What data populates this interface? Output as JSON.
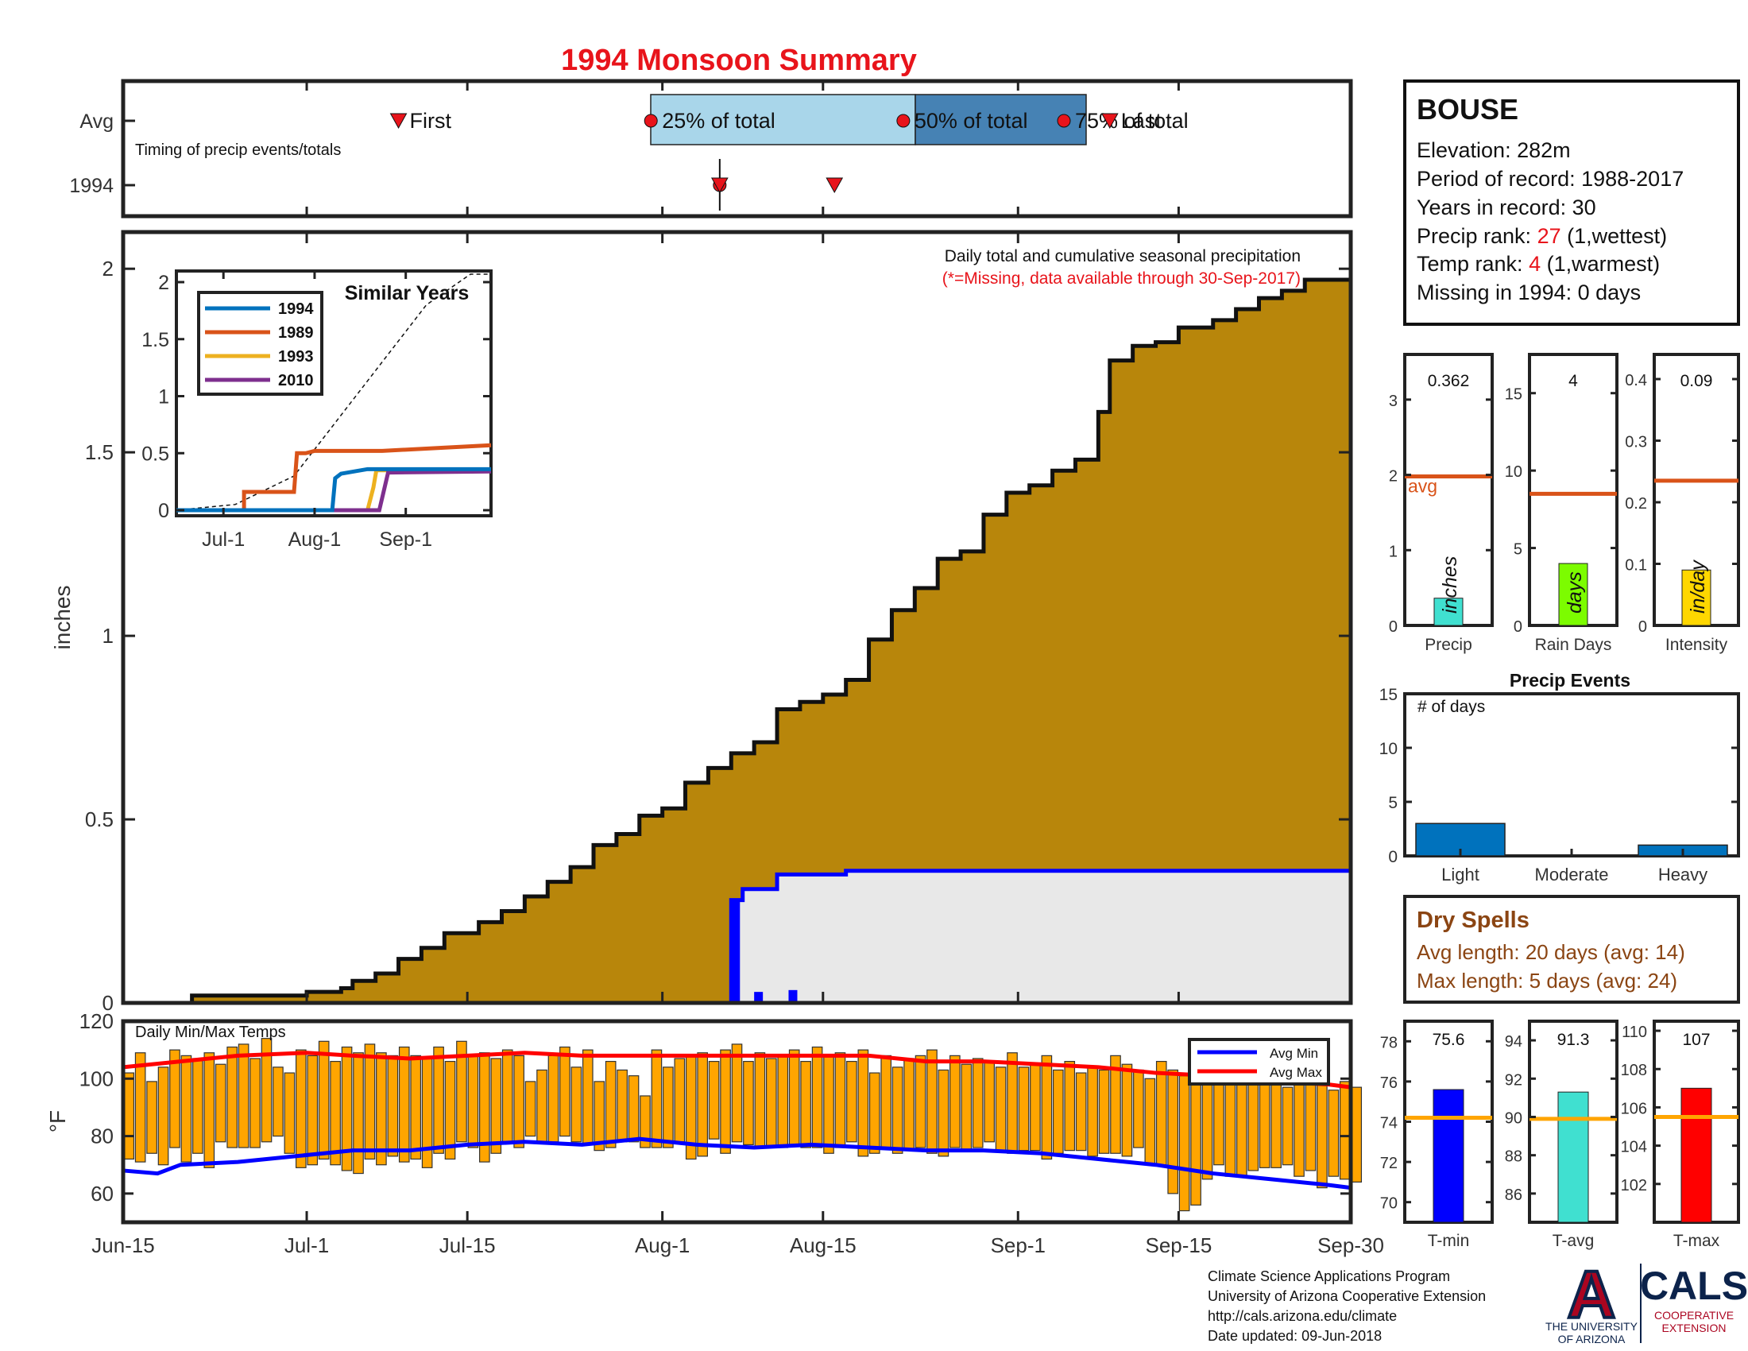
{
  "title": "1994 Monsoon Summary",
  "timing": {
    "row_labels": [
      "Avg",
      "1994"
    ],
    "note": "Timing of precip events/totals",
    "labels": [
      "First",
      "25% of total",
      "50% of total",
      "75% of total",
      "Last"
    ],
    "avg_markers": [
      {
        "date": "Jul-9",
        "day": 24,
        "kind": "triangle",
        "label": "First"
      },
      {
        "date": "Jul-31",
        "day": 46,
        "kind": "circle",
        "label": "25% of total"
      },
      {
        "date": "Aug-22",
        "day": 68,
        "kind": "circle",
        "label": "50% of total"
      },
      {
        "date": "Sep-5",
        "day": 82,
        "kind": "circle",
        "label": "75% of total"
      },
      {
        "date": "Sep-9",
        "day": 86,
        "kind": "triangle",
        "label": "Last"
      }
    ],
    "year_markers": [
      {
        "date": "Aug-6",
        "day": 52,
        "kind": "circle"
      },
      {
        "date": "Aug-6",
        "day": 52,
        "kind": "triangle"
      },
      {
        "date": "Aug-16",
        "day": 62,
        "kind": "triangle"
      }
    ],
    "year_marker_span": [
      "Aug-6",
      "Aug-6"
    ],
    "iqr_light": [
      "Jul-31",
      "Aug-22"
    ],
    "iqr_dark": [
      "Aug-22",
      "Sep-5"
    ]
  },
  "info": {
    "station": "BOUSE",
    "elevation_label": "Elevation: 282m",
    "period_label": "Period of record: 1988-2017",
    "years_label": "Years in record: 30",
    "precip_rank_prefix": "Precip rank: ",
    "precip_rank": "27",
    "precip_rank_suffix": " (1,wettest)",
    "temp_rank_prefix": "Temp rank: ",
    "temp_rank": "4",
    "temp_rank_suffix": " (1,warmest)",
    "missing_label": "Missing in 1994: 0 days"
  },
  "main_chart": {
    "ylabel": "inches",
    "note": "Daily total and cumulative seasonal precipitation",
    "missing_note": "(*=Missing, data available through 30-Sep-2017)",
    "x_ticks": [
      {
        "day": 0,
        "label": "Jun-15"
      },
      {
        "day": 16,
        "label": "Jul-1"
      },
      {
        "day": 30,
        "label": "Jul-15"
      },
      {
        "day": 47,
        "label": "Aug-1"
      },
      {
        "day": 61,
        "label": "Aug-15"
      },
      {
        "day": 78,
        "label": "Sep-1"
      },
      {
        "day": 92,
        "label": "Sep-15"
      },
      {
        "day": 107,
        "label": "Sep-30"
      }
    ],
    "y_ticks": [
      "0",
      "0.5",
      "1",
      "1.5",
      "2"
    ],
    "ylim": [
      0,
      2.1
    ]
  },
  "inset": {
    "title": "Similar Years",
    "x_ticks": [
      "Jul-1",
      "Aug-1",
      "Sep-1"
    ],
    "y_ticks": [
      "0",
      "0.5",
      "1",
      "1.5",
      "2"
    ],
    "legend": [
      {
        "name": "1994",
        "color": "#0072bd"
      },
      {
        "name": "1989",
        "color": "#d95319"
      },
      {
        "name": "1993",
        "color": "#edb120"
      },
      {
        "name": "2010",
        "color": "#7e2f8e"
      }
    ]
  },
  "bars_precip": {
    "value_label": "0.362",
    "value": 0.362,
    "avg": 1.98,
    "ylabel": "inches",
    "avg_label": "avg",
    "xlabel": "Precip",
    "ticks": [
      "0",
      "1",
      "2",
      "3"
    ],
    "color": "#40e0d0"
  },
  "bars_raindays": {
    "value_label": "4",
    "value": 4,
    "avg": 8.5,
    "ylabel": "days",
    "xlabel": "Rain Days",
    "ticks": [
      "0",
      "5",
      "10",
      "15"
    ],
    "color": "#7cfc00"
  },
  "bars_intensity": {
    "value_label": "0.09",
    "value": 0.09,
    "avg": 0.235,
    "ylabel": "in/day",
    "xlabel": "Intensity",
    "ticks": [
      "0",
      "0.1",
      "0.2",
      "0.3",
      "0.4"
    ],
    "color": "#ffd700"
  },
  "precip_events": {
    "title": "Precip Events",
    "ylabel": "# of days",
    "ticks": [
      "0",
      "5",
      "10",
      "15"
    ],
    "categories": [
      "Light",
      "Moderate",
      "Heavy"
    ],
    "values": [
      3,
      0,
      1
    ]
  },
  "dry_spells": {
    "title": "Dry Spells",
    "avg_line": "Avg length: 20 days (avg: 14)",
    "max_line": "Max length: 5 days (avg: 24)"
  },
  "temps": {
    "title": "Daily Min/Max Temps",
    "ylabel": "°F",
    "y_ticks": [
      "60",
      "80",
      "100",
      "120"
    ],
    "legend_min": "Avg Min",
    "legend_max": "Avg Max"
  },
  "temp_bars": [
    {
      "xlabel": "T-min",
      "value_label": "75.6",
      "value": 75.6,
      "avg": 74.2,
      "ticks": [
        "70",
        "72",
        "74",
        "76",
        "78"
      ],
      "color": "#0000ff"
    },
    {
      "xlabel": "T-avg",
      "value_label": "91.3",
      "value": 91.3,
      "avg": 89.9,
      "ticks": [
        "86",
        "88",
        "90",
        "92",
        "94"
      ],
      "color": "#40e0d0"
    },
    {
      "xlabel": "T-max",
      "value_label": "107",
      "value": 107,
      "avg": 105.5,
      "ticks": [
        "102",
        "104",
        "106",
        "108",
        "110"
      ],
      "color": "#ff0000"
    }
  ],
  "footer": {
    "line1": "Climate Science Applications Program",
    "line2": "University of Arizona Cooperative Extension",
    "line3": "http://cals.arizona.edu/climate",
    "line4": " Date updated: 09-Jun-2018"
  },
  "logo": {
    "letter": "A",
    "ua_line1": "THE UNIVERSITY",
    "ua_line2": "OF ARIZONA",
    "cals": "CALS",
    "coop1": "COOPERATIVE",
    "coop2": "EXTENSION"
  },
  "chart_data": [
    {
      "type": "area",
      "title": "",
      "ylabel": "inches",
      "ylim": [
        0,
        2.1
      ],
      "x_range": [
        "Jun-15",
        "Sep-30"
      ],
      "series": [
        {
          "values_at_days": [
            [
              0,
              0
            ],
            [
              5,
              0
            ],
            [
              6,
              0.02
            ],
            [
              10,
              0.02
            ],
            [
              16,
              0.03
            ],
            [
              19,
              0.04
            ],
            [
              20,
              0.06
            ],
            [
              22,
              0.08
            ],
            [
              24,
              0.12
            ],
            [
              26,
              0.15
            ],
            [
              28,
              0.19
            ],
            [
              31,
              0.22
            ],
            [
              33,
              0.25
            ],
            [
              35,
              0.29
            ],
            [
              37,
              0.33
            ],
            [
              39,
              0.37
            ],
            [
              41,
              0.43
            ],
            [
              43,
              0.46
            ],
            [
              45,
              0.51
            ],
            [
              47,
              0.53
            ],
            [
              49,
              0.6
            ],
            [
              51,
              0.64
            ],
            [
              53,
              0.68
            ],
            [
              55,
              0.71
            ],
            [
              57,
              0.8
            ],
            [
              59,
              0.82
            ],
            [
              61,
              0.84
            ],
            [
              63,
              0.88
            ],
            [
              65,
              0.99
            ],
            [
              67,
              1.07
            ],
            [
              69,
              1.13
            ],
            [
              71,
              1.21
            ],
            [
              73,
              1.23
            ],
            [
              75,
              1.33
            ],
            [
              77,
              1.39
            ],
            [
              79,
              1.41
            ],
            [
              81,
              1.45
            ],
            [
              83,
              1.48
            ],
            [
              85,
              1.61
            ],
            [
              86,
              1.75
            ],
            [
              88,
              1.79
            ],
            [
              90,
              1.8
            ],
            [
              92,
              1.84
            ],
            [
              95,
              1.86
            ],
            [
              97,
              1.89
            ],
            [
              99,
              1.92
            ],
            [
              101,
              1.94
            ],
            [
              103,
              1.97
            ],
            [
              107,
              1.97
            ]
          ]
        },
        {
          "name": "",
          "values_at_days": [
            [
              53,
              0
            ],
            [
              53,
              0.28
            ],
            [
              54,
              0.31
            ],
            [
              57,
              0.35
            ],
            [
              63,
              0.36
            ],
            [
              107,
              0.36
            ]
          ]
        },
        {
          "type": "bar",
          "values_at_days": [
            [
              53,
              0.28
            ],
            [
              55,
              0.03
            ],
            [
              58,
              0.035
            ],
            [
              64,
              0.005
            ]
          ]
        }
      ]
    },
    {
      "type": "line",
      "title": "Similar Years",
      "x": [
        "Jun-15",
        "Jul-1",
        "Aug-1",
        "Sep-1",
        "Sep-30"
      ],
      "series": [
        {
          "name": "1994",
          "values_at_days": [
            [
              0,
              0
            ],
            [
              53,
              0
            ],
            [
              54,
              0.28
            ],
            [
              56,
              0.32
            ],
            [
              65,
              0.36
            ],
            [
              107,
              0.36
            ]
          ]
        },
        {
          "name": "1989",
          "values_at_days": [
            [
              0,
              0
            ],
            [
              23,
              0
            ],
            [
              23,
              0.16
            ],
            [
              40,
              0.16
            ],
            [
              41,
              0.5
            ],
            [
              44,
              0.5
            ],
            [
              47,
              0.52
            ],
            [
              70,
              0.52
            ],
            [
              92,
              0.55
            ],
            [
              107,
              0.57
            ]
          ]
        },
        {
          "name": "1993",
          "values_at_days": [
            [
              0,
              0
            ],
            [
              65,
              0
            ],
            [
              67,
              0.2
            ],
            [
              68,
              0.35
            ],
            [
              107,
              0.35
            ]
          ]
        },
        {
          "name": "2010",
          "values_at_days": [
            [
              0,
              0
            ],
            [
              69,
              0
            ],
            [
              72,
              0.33
            ],
            [
              107,
              0.34
            ]
          ]
        },
        {
          "values_at_days": [
            [
              0,
              0
            ],
            [
              20,
              0.05
            ],
            [
              40,
              0.3
            ],
            [
              55,
              0.8
            ],
            [
              70,
              1.3
            ],
            [
              85,
              1.8
            ],
            [
              100,
              2.15
            ],
            [
              107,
              2.2
            ]
          ]
        }
      ]
    },
    {
      "type": "bar",
      "title": "Daily Min/Max Temps",
      "ylabel": "°F",
      "ylim": [
        50,
        120
      ],
      "x_range": [
        "Jun-15",
        "Sep-30"
      ],
      "daily_max": [
        102,
        109,
        99,
        104,
        110,
        108,
        107,
        109,
        105,
        111,
        112,
        107,
        114,
        104,
        102,
        110,
        108,
        113,
        106,
        111,
        109,
        112,
        109,
        108,
        111,
        108,
        107,
        111,
        106,
        113,
        108,
        109,
        107,
        110,
        108,
        99,
        103,
        108,
        111,
        104,
        110,
        99,
        106,
        103,
        101,
        94,
        110,
        104,
        107,
        108,
        109,
        106,
        110,
        112,
        106,
        109,
        107,
        108,
        110,
        106,
        111,
        108,
        109,
        106,
        110,
        102,
        108,
        104,
        107,
        108,
        110,
        103,
        108,
        105,
        107,
        106,
        104,
        109,
        104,
        105,
        108,
        103,
        106,
        102,
        104,
        103,
        108,
        105,
        103,
        100,
        106,
        103,
        101,
        104,
        100,
        99,
        101,
        102,
        104,
        99,
        100,
        97,
        98,
        102,
        100,
        96,
        99,
        97
      ],
      "daily_min": [
        72,
        71,
        74,
        70,
        76,
        71,
        74,
        69,
        78,
        76,
        76,
        76,
        78,
        80,
        74,
        69,
        70,
        72,
        70,
        68,
        67,
        72,
        70,
        73,
        71,
        72,
        69,
        74,
        72,
        78,
        76,
        71,
        74,
        78,
        76,
        80,
        78,
        78,
        80,
        78,
        77,
        75,
        76,
        78,
        78,
        76,
        76,
        76,
        78,
        72,
        73,
        79,
        74,
        78,
        77,
        76,
        76,
        76,
        77,
        76,
        76,
        74,
        76,
        78,
        73,
        74,
        76,
        74,
        75,
        76,
        74,
        73,
        76,
        75,
        76,
        78,
        75,
        74,
        75,
        75,
        72,
        74,
        75,
        75,
        73,
        74,
        74,
        73,
        76,
        70,
        70,
        60,
        54,
        56,
        65,
        70,
        66,
        66,
        68,
        69,
        69,
        70,
        66,
        68,
        62,
        66,
        65,
        64
      ],
      "series": [
        {
          "name": "Avg Min",
          "values_at_days": [
            [
              0,
              68
            ],
            [
              3,
              67
            ],
            [
              5,
              70
            ],
            [
              10,
              71
            ],
            [
              15,
              73
            ],
            [
              20,
              75
            ],
            [
              25,
              75
            ],
            [
              30,
              77
            ],
            [
              35,
              78
            ],
            [
              40,
              77
            ],
            [
              45,
              79
            ],
            [
              50,
              77
            ],
            [
              55,
              76
            ],
            [
              60,
              77
            ],
            [
              65,
              76
            ],
            [
              70,
              75
            ],
            [
              75,
              75
            ],
            [
              80,
              74
            ],
            [
              85,
              72
            ],
            [
              90,
              70
            ],
            [
              95,
              67
            ],
            [
              100,
              65
            ],
            [
              105,
              63
            ],
            [
              107,
              62
            ]
          ]
        },
        {
          "name": "Avg Max",
          "values_at_days": [
            [
              0,
              104
            ],
            [
              5,
              106
            ],
            [
              10,
              108
            ],
            [
              16,
              109
            ],
            [
              20,
              108
            ],
            [
              25,
              107
            ],
            [
              30,
              108
            ],
            [
              35,
              109
            ],
            [
              40,
              108
            ],
            [
              45,
              108
            ],
            [
              50,
              108
            ],
            [
              55,
              108
            ],
            [
              60,
              108
            ],
            [
              65,
              108
            ],
            [
              70,
              106
            ],
            [
              75,
              106
            ],
            [
              80,
              105
            ],
            [
              85,
              104
            ],
            [
              90,
              102
            ],
            [
              95,
              101
            ],
            [
              100,
              99
            ],
            [
              105,
              98
            ],
            [
              107,
              97
            ]
          ]
        }
      ]
    }
  ]
}
